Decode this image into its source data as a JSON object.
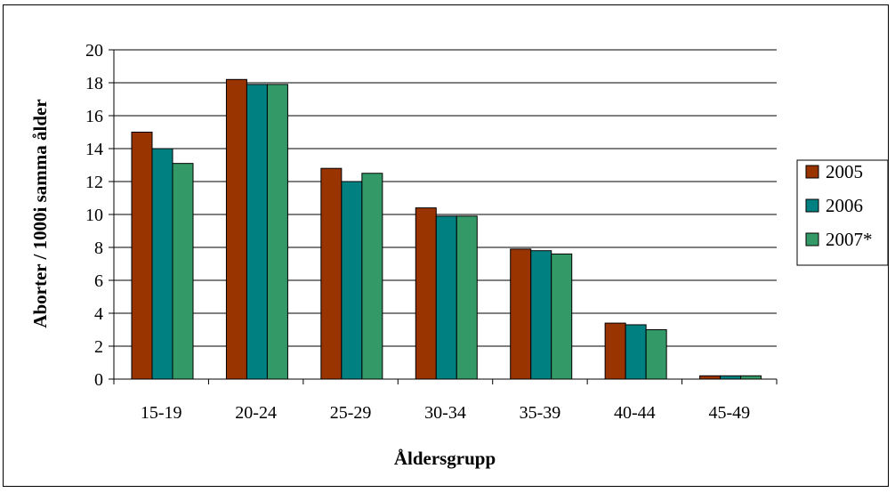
{
  "chart_data": {
    "type": "bar",
    "categories": [
      "15-19",
      "20-24",
      "25-29",
      "30-34",
      "35-39",
      "40-44",
      "45-49"
    ],
    "series": [
      {
        "name": "2005",
        "color": "#993300",
        "values": [
          15.0,
          18.2,
          12.8,
          10.4,
          7.9,
          3.4,
          0.2
        ]
      },
      {
        "name": "2006",
        "color": "#008080",
        "values": [
          14.0,
          17.9,
          12.0,
          9.9,
          7.8,
          3.3,
          0.2
        ]
      },
      {
        "name": "2007*",
        "color": "#339966",
        "values": [
          13.1,
          17.9,
          12.5,
          9.9,
          7.6,
          3.0,
          0.2
        ]
      }
    ],
    "xlabel": "Åldersgrupp",
    "ylabel": "Aborter / 1000i samma ålder",
    "ylim": [
      0,
      20
    ],
    "yticks": [
      0,
      2,
      4,
      6,
      8,
      10,
      12,
      14,
      16,
      18,
      20
    ],
    "grid": true,
    "legend_position": "right"
  }
}
